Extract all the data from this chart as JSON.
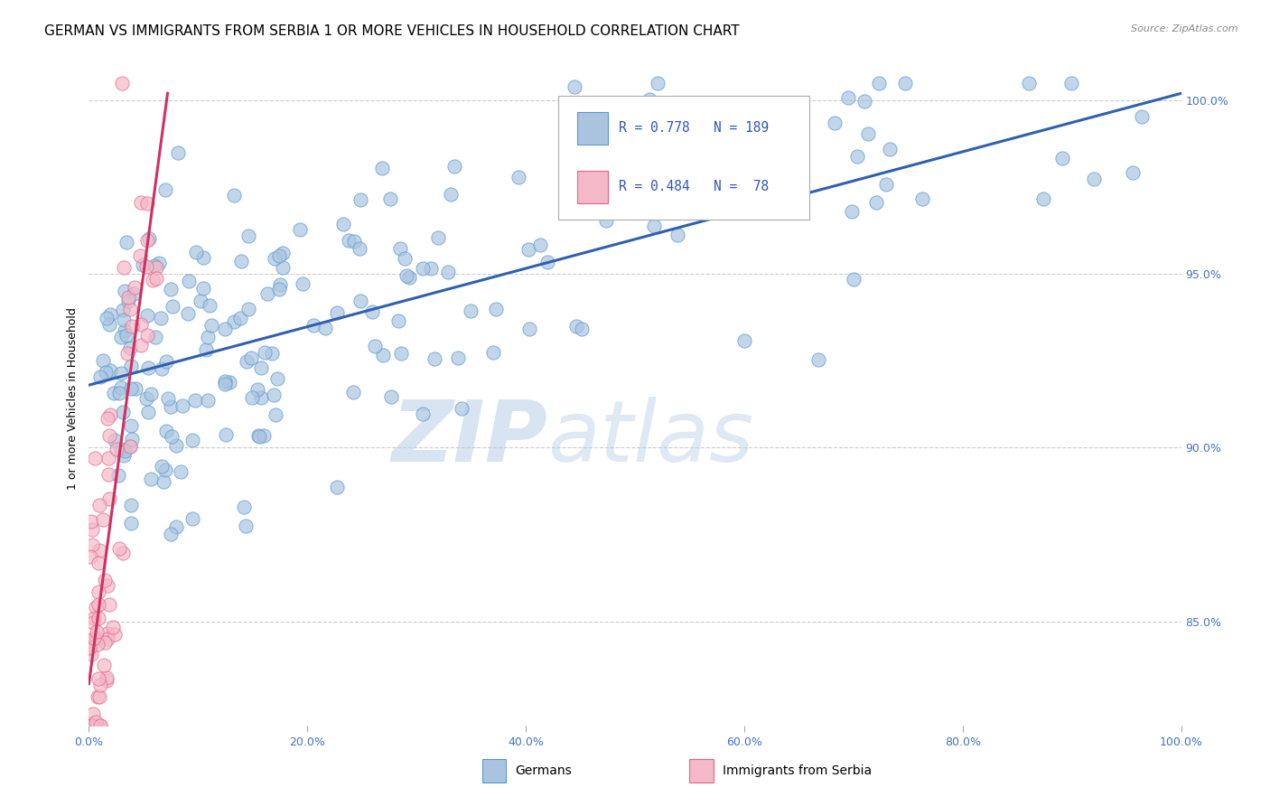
{
  "title": "GERMAN VS IMMIGRANTS FROM SERBIA 1 OR MORE VEHICLES IN HOUSEHOLD CORRELATION CHART",
  "source": "Source: ZipAtlas.com",
  "ylabel": "1 or more Vehicles in Household",
  "watermark_zip": "ZIP",
  "watermark_atlas": "atlas",
  "xlim": [
    0.0,
    1.0
  ],
  "ylim": [
    0.82,
    1.008
  ],
  "yticks": [
    0.85,
    0.9,
    0.95,
    1.0
  ],
  "ytick_labels": [
    "85.0%",
    "90.0%",
    "95.0%",
    "100.0%"
  ],
  "xtick_labels": [
    "0.0%",
    "20.0%",
    "40.0%",
    "60.0%",
    "80.0%",
    "100.0%"
  ],
  "xticks": [
    0.0,
    0.2,
    0.4,
    0.6,
    0.8,
    1.0
  ],
  "german_color": "#aac4e0",
  "german_edge_color": "#5599cc",
  "serbia_color": "#f5b8c8",
  "serbia_edge_color": "#e06688",
  "line_german_color": "#3060b0",
  "line_serbia_color": "#d03060",
  "R_german": 0.778,
  "N_german": 189,
  "R_serbia": 0.484,
  "N_serbia": 78,
  "legend_label_german": "Germans",
  "legend_label_serbia": "Immigrants from Serbia",
  "title_fontsize": 11,
  "axis_fontsize": 9,
  "tick_fontsize": 9,
  "background_color": "#ffffff",
  "grid_color": "#cccccc",
  "grid_linestyle": "--",
  "scatter_size": 120,
  "scatter_alpha": 0.7,
  "blue_line_y0": 0.918,
  "blue_line_y1": 1.002,
  "pink_line_x0": 0.0,
  "pink_line_x1": 0.072,
  "pink_line_y0": 0.832,
  "pink_line_y1": 1.002
}
